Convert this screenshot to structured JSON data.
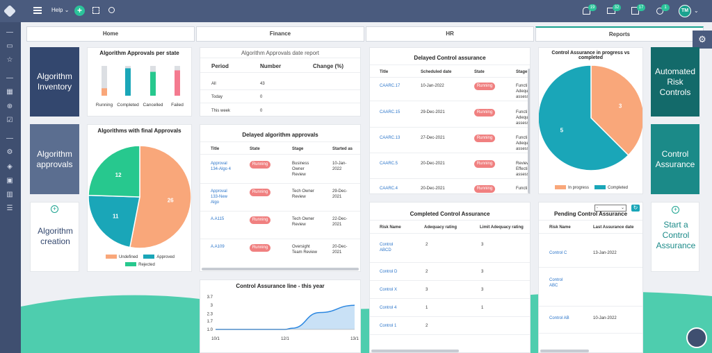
{
  "topbar": {
    "help_label": "Help",
    "avatar_initials": "TM",
    "notif_count": "19",
    "mail_count": "32",
    "calendar_count": "17",
    "sun_count": "1"
  },
  "tabs": [
    {
      "label": "Home"
    },
    {
      "label": "Finance"
    },
    {
      "label": "HR"
    },
    {
      "label": "Reports"
    }
  ],
  "tiles": {
    "algorithm_inventory": "Algorithm Inventory",
    "algorithm_approvals": "Algorithm approvals",
    "algorithm_creation": "Algorithm creation",
    "automated_risk_controls": "Automated Risk Controls",
    "control_assurance": "Control Assurance",
    "start_control_assurance": "Start a Control Assurance"
  },
  "approvals_per_state": {
    "title": "Algorithm Approvals per state",
    "chart_data": {
      "type": "bar",
      "categories": [
        "Running",
        "Completed",
        "Cancelled",
        "Failed"
      ],
      "values": [
        0.25,
        0.92,
        0.8,
        0.85
      ]
    }
  },
  "final_approvals": {
    "title": "Algorithms with final Approvals",
    "chart_data": {
      "type": "pie",
      "categories": [
        "Undefined",
        "Approved",
        "Rejected"
      ],
      "values": [
        26,
        11,
        12
      ],
      "legend_position": "bottom"
    }
  },
  "date_report": {
    "title": "Algorithm Approvals date report",
    "headers": [
      "Period",
      "Number",
      "Change (%)"
    ],
    "rows": [
      [
        "All",
        "43",
        ""
      ],
      [
        "Today",
        "0",
        ""
      ],
      [
        "This week",
        "0",
        ""
      ]
    ]
  },
  "delayed_algorithms": {
    "title": "Delayed algorithm approvals",
    "headers": [
      "Title",
      "State",
      "Stage",
      "Started as"
    ],
    "rows": [
      [
        "Approval 134-Algo 4",
        "Running",
        "Business Owner Review",
        "10-Jan-2022"
      ],
      [
        "Approval 133-New Algo",
        "Running",
        "Tech Owner Review",
        "29-Dec-2021"
      ],
      [
        "A.A115",
        "Running",
        "Tech Owner Review",
        "22-Dec-2021"
      ],
      [
        "A.A109",
        "Running",
        "Oversight Team Review",
        "20-Dec-2021"
      ]
    ]
  },
  "control_line": {
    "title": "Control Assurance line - this year",
    "chart_data": {
      "type": "area",
      "x": [
        "10/1",
        "12/1",
        "13/1"
      ],
      "y_ticks": [
        "3.7",
        "3",
        "2.3",
        "1.7",
        "1.0"
      ],
      "points": [
        [
          0,
          1.0
        ],
        [
          0.5,
          1.0
        ],
        [
          0.55,
          1.1
        ],
        [
          0.75,
          2.4
        ],
        [
          1,
          3.0
        ]
      ],
      "ylim": [
        1.0,
        3.7
      ]
    }
  },
  "delayed_control": {
    "title": "Delayed Control assurance",
    "headers": [
      "Title",
      "Scheduled date",
      "State",
      "Stage"
    ],
    "rows": [
      [
        "CAARC.17",
        "10-Jan-2022",
        "Running",
        "Functi Adequ assess"
      ],
      [
        "CAARC.15",
        "29-Dec-2021",
        "Running",
        "Functi Adequ assess"
      ],
      [
        "CAARC.13",
        "27-Dec-2021",
        "Running",
        "Functi Adequ assess"
      ],
      [
        "CAARC.5",
        "20-Dec-2021",
        "Running",
        "Review Effecti assess"
      ],
      [
        "CAARC.4",
        "20-Dec-2021",
        "Running",
        "Functi"
      ]
    ]
  },
  "completed_control": {
    "title": "Completed Control Assurance",
    "headers": [
      "Risk Name",
      "Adequacy rating",
      "Limit Adequacy rating"
    ],
    "rows": [
      [
        "Control ABCD",
        "2",
        "3"
      ],
      [
        "Control D",
        "2",
        "3"
      ],
      [
        "Control X",
        "3",
        "3"
      ],
      [
        "Control 4",
        "1",
        "1"
      ],
      [
        "Control 1",
        "2",
        ""
      ]
    ]
  },
  "progress_vs_completed": {
    "title": "Control Assurance in progress vs completed",
    "chart_data": {
      "type": "pie",
      "categories": [
        "In progress",
        "Completed"
      ],
      "values": [
        3,
        5
      ],
      "legend_position": "bottom"
    }
  },
  "pending_control": {
    "title": "Pending Control Assurance",
    "select_value": "-",
    "headers": [
      "Risk Name",
      "Last Assurance date"
    ],
    "rows": [
      [
        "Control C",
        "13-Jan-2022"
      ],
      [
        "Control ABC",
        ""
      ],
      [
        "Control AB",
        "10-Jan-2022"
      ]
    ]
  },
  "colors": {
    "orange": "#f9a77a",
    "teal": "#1aa6b8",
    "green": "#27c88e",
    "pink": "#f47a8f",
    "navy": "#33476e",
    "slate": "#5b6e90",
    "dark_teal": "#136a6a",
    "teal2": "#1b8a88"
  }
}
